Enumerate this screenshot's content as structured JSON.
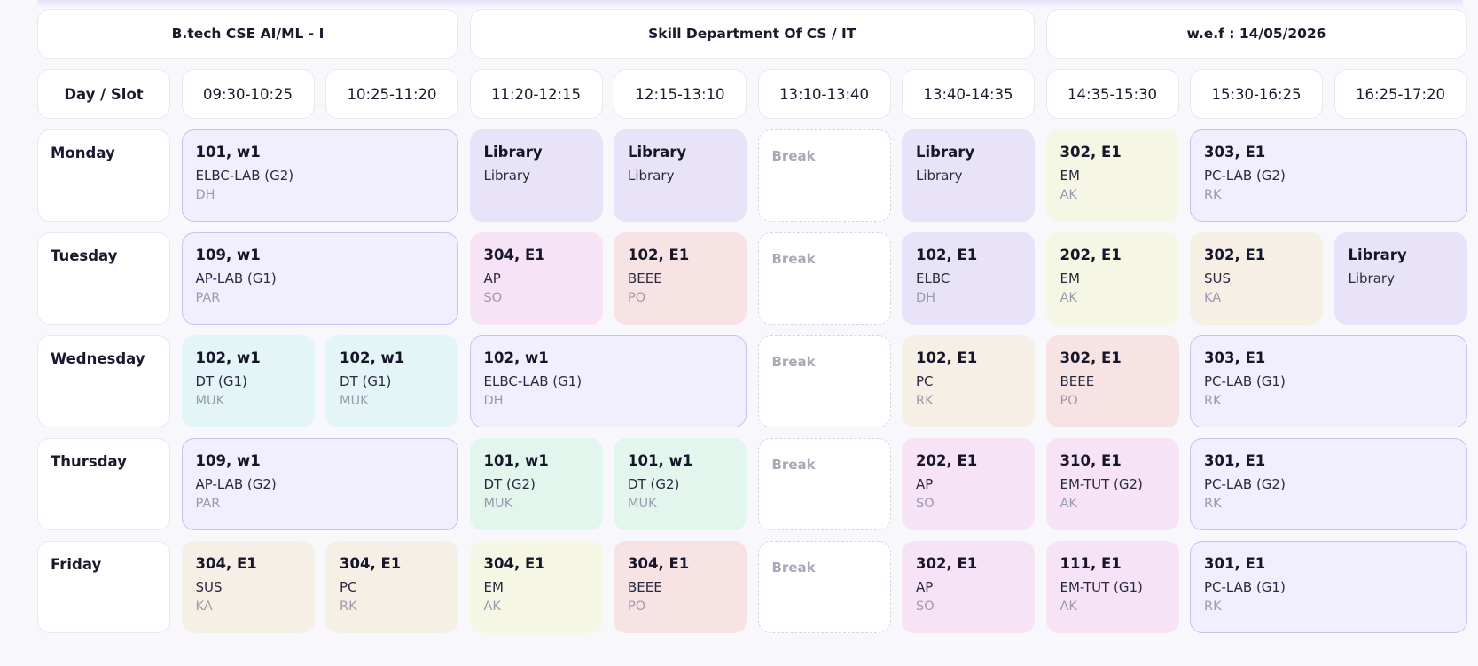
{
  "header": {
    "program": "B.tech CSE AI/ML - I",
    "department": "Skill Department Of CS / IT",
    "effective": "w.e.f : 14/05/2026"
  },
  "slots": {
    "day_label": "Day / Slot",
    "times": [
      "09:30-10:25",
      "10:25-11:20",
      "11:20-12:15",
      "12:15-13:10",
      "13:10-13:40",
      "13:40-14:35",
      "14:35-15:30",
      "15:30-16:25",
      "16:25-17:20"
    ]
  },
  "days": {
    "monday": {
      "name": "Monday",
      "c0": {
        "room": "101, w1",
        "subject": "ELBC-LAB (G2)",
        "teacher": "DH"
      },
      "c1": {
        "room": "Library",
        "subject": "Library"
      },
      "c2": {
        "room": "Library",
        "subject": "Library"
      },
      "brk": "Break",
      "c3": {
        "room": "Library",
        "subject": "Library"
      },
      "c4": {
        "room": "302, E1",
        "subject": "EM",
        "teacher": "AK"
      },
      "c5": {
        "room": "303, E1",
        "subject": "PC-LAB (G2)",
        "teacher": "RK"
      }
    },
    "tuesday": {
      "name": "Tuesday",
      "c0": {
        "room": "109, w1",
        "subject": "AP-LAB (G1)",
        "teacher": "PAR"
      },
      "c1": {
        "room": "304, E1",
        "subject": "AP",
        "teacher": "SO"
      },
      "c2": {
        "room": "102, E1",
        "subject": "BEEE",
        "teacher": "PO"
      },
      "brk": "Break",
      "c3": {
        "room": "102, E1",
        "subject": "ELBC",
        "teacher": "DH"
      },
      "c4": {
        "room": "202, E1",
        "subject": "EM",
        "teacher": "AK"
      },
      "c5": {
        "room": "302, E1",
        "subject": "SUS",
        "teacher": "KA"
      },
      "c6": {
        "room": "Library",
        "subject": "Library"
      }
    },
    "wednesday": {
      "name": "Wednesday",
      "c0": {
        "room": "102, w1",
        "subject": "DT (G1)",
        "teacher": "MUK"
      },
      "c1": {
        "room": "102, w1",
        "subject": "DT (G1)",
        "teacher": "MUK"
      },
      "c2": {
        "room": "102, w1",
        "subject": "ELBC-LAB (G1)",
        "teacher": "DH"
      },
      "brk": "Break",
      "c3": {
        "room": "102, E1",
        "subject": "PC",
        "teacher": "RK"
      },
      "c4": {
        "room": "302, E1",
        "subject": "BEEE",
        "teacher": "PO"
      },
      "c5": {
        "room": "303, E1",
        "subject": "PC-LAB (G1)",
        "teacher": "RK"
      }
    },
    "thursday": {
      "name": "Thursday",
      "c0": {
        "room": "109, w1",
        "subject": "AP-LAB (G2)",
        "teacher": "PAR"
      },
      "c1": {
        "room": "101, w1",
        "subject": "DT (G2)",
        "teacher": "MUK"
      },
      "c2": {
        "room": "101, w1",
        "subject": "DT (G2)",
        "teacher": "MUK"
      },
      "brk": "Break",
      "c3": {
        "room": "202, E1",
        "subject": "AP",
        "teacher": "SO"
      },
      "c4": {
        "room": "310, E1",
        "subject": "EM-TUT (G2)",
        "teacher": "AK"
      },
      "c5": {
        "room": "301, E1",
        "subject": "PC-LAB (G2)",
        "teacher": "RK"
      }
    },
    "friday": {
      "name": "Friday",
      "c0": {
        "room": "304, E1",
        "subject": "SUS",
        "teacher": "KA"
      },
      "c1": {
        "room": "304, E1",
        "subject": "PC",
        "teacher": "RK"
      },
      "c2": {
        "room": "304, E1",
        "subject": "EM",
        "teacher": "AK"
      },
      "c3": {
        "room": "304, E1",
        "subject": "BEEE",
        "teacher": "PO"
      },
      "brk": "Break",
      "c4": {
        "room": "302, E1",
        "subject": "AP",
        "teacher": "SO"
      },
      "c5": {
        "room": "111, E1",
        "subject": "EM-TUT (G1)",
        "teacher": "AK"
      },
      "c6": {
        "room": "301, E1",
        "subject": "PC-LAB (G1)",
        "teacher": "RK"
      }
    }
  }
}
